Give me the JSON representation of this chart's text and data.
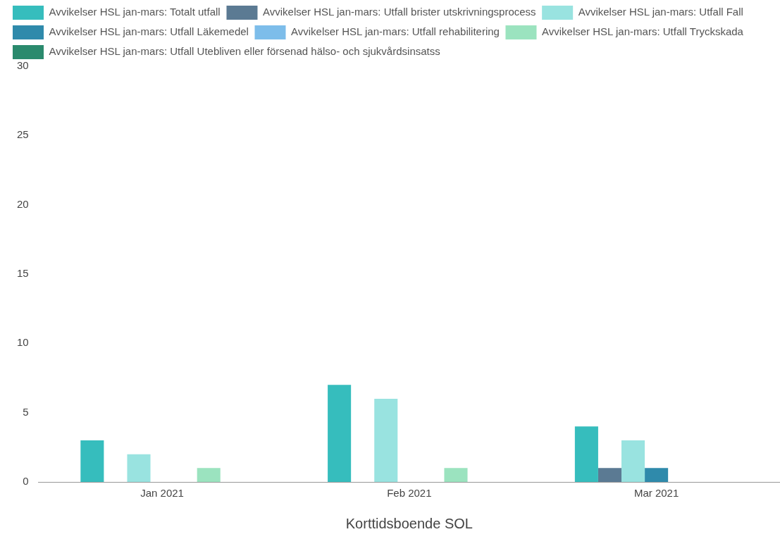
{
  "chart_data": {
    "type": "bar",
    "xlabel": "Korttidsboende SOL",
    "categories": [
      "Jan 2021",
      "Feb 2021",
      "Mar 2021"
    ],
    "series": [
      {
        "name": "Avvikelser HSL jan-mars: Totalt utfall",
        "color": "#36bdbd",
        "values": [
          3,
          7,
          4
        ]
      },
      {
        "name": "Avvikelser HSL jan-mars: Utfall brister utskrivningsprocess",
        "color": "#5b7a93",
        "values": [
          0,
          0,
          1
        ]
      },
      {
        "name": "Avvikelser HSL jan-mars: Utfall Fall",
        "color": "#99e3e0",
        "values": [
          2,
          6,
          3
        ]
      },
      {
        "name": "Avvikelser HSL jan-mars: Utfall Läkemedel",
        "color": "#2f8aab",
        "values": [
          0,
          0,
          1
        ]
      },
      {
        "name": "Avvikelser HSL jan-mars: Utfall rehabilitering",
        "color": "#7dbdea",
        "values": [
          0,
          0,
          0
        ]
      },
      {
        "name": "Avvikelser HSL jan-mars: Utfall Tryckskada",
        "color": "#9be3bf",
        "values": [
          1,
          1,
          0
        ]
      },
      {
        "name": "Avvikelser HSL jan-mars: Utfall Utebliven eller försenad hälso- och sjukvårdsinsatss",
        "color": "#2a8a6d",
        "values": [
          0,
          0,
          0
        ]
      }
    ],
    "ylim": [
      0,
      30
    ],
    "yticks": [
      0,
      5,
      10,
      15,
      20,
      25,
      30
    ],
    "grid": false,
    "legend": "top left"
  }
}
